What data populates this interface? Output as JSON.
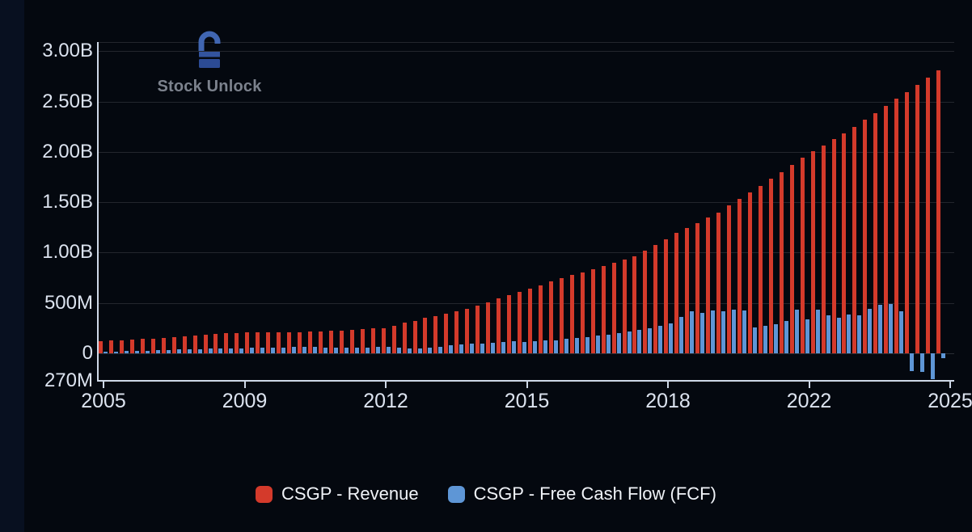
{
  "watermark": {
    "brand": "Stock Unlock"
  },
  "chart_data": {
    "type": "bar",
    "title": "",
    "xlabel": "",
    "ylabel": "",
    "grid": true,
    "legend_position": "bottom-center",
    "y_axis": {
      "min_millions": -270,
      "max_millions": 3080,
      "tick_step_millions": 500
    },
    "y_ticks": [
      {
        "label": "3.00B",
        "value_millions": 3000
      },
      {
        "label": "2.50B",
        "value_millions": 2500
      },
      {
        "label": "2.00B",
        "value_millions": 2000
      },
      {
        "label": "1.50B",
        "value_millions": 1500
      },
      {
        "label": "1.00B",
        "value_millions": 1000
      },
      {
        "label": "500M",
        "value_millions": 500
      },
      {
        "label": "0",
        "value_millions": 0
      },
      {
        "label": "270M",
        "value_millions": -270
      }
    ],
    "x_tick_labels": [
      "2005",
      "2009",
      "2012",
      "2015",
      "2018",
      "2022",
      "2025"
    ],
    "categories_note": "quarterly bars from 2005 to 2025",
    "series": [
      {
        "name": "CSGP - Revenue",
        "color": "#d43a2b",
        "values_millions": [
          120,
          125,
          130,
          136,
          142,
          148,
          154,
          160,
          168,
          176,
          185,
          193,
          198,
          203,
          208,
          212,
          212,
          211,
          210,
          210,
          214,
          218,
          222,
          226,
          232,
          239,
          245,
          252,
          276,
          301,
          325,
          350,
          373,
          396,
          418,
          441,
          475,
          509,
          542,
          576,
          610,
          644,
          678,
          712,
          743,
          775,
          806,
          838,
          870,
          902,
          934,
          965,
          1022,
          1078,
          1135,
          1192,
          1244,
          1296,
          1348,
          1400,
          1465,
          1530,
          1594,
          1659,
          1730,
          1801,
          1873,
          1944,
          2004,
          2063,
          2123,
          2182,
          2250,
          2318,
          2387,
          2455,
          2525,
          2595,
          2666,
          2736,
          2810
        ]
      },
      {
        "name": "CSGP - Free Cash Flow (FCF)",
        "color": "#5e96d6",
        "values_millions": [
          16,
          19,
          22,
          25,
          28,
          31,
          34,
          37,
          39,
          42,
          45,
          47,
          49,
          51,
          53,
          55,
          57,
          59,
          61,
          63,
          61,
          59,
          57,
          56,
          58,
          60,
          63,
          65,
          55,
          46,
          51,
          60,
          68,
          77,
          85,
          93,
          99,
          105,
          111,
          117,
          113,
          119,
          125,
          131,
          142,
          152,
          163,
          174,
          188,
          203,
          218,
          232,
          250,
          272,
          300,
          360,
          420,
          405,
          428,
          417,
          435,
          425,
          260,
          275,
          292,
          318,
          430,
          340,
          430,
          378,
          350,
          388,
          380,
          445,
          478,
          490,
          420,
          -175,
          -185,
          -255,
          -45
        ]
      }
    ],
    "legend": [
      {
        "label": "CSGP - Revenue",
        "color": "#d43a2b"
      },
      {
        "label": "CSGP - Free Cash Flow (FCF)",
        "color": "#5e96d6"
      }
    ]
  }
}
